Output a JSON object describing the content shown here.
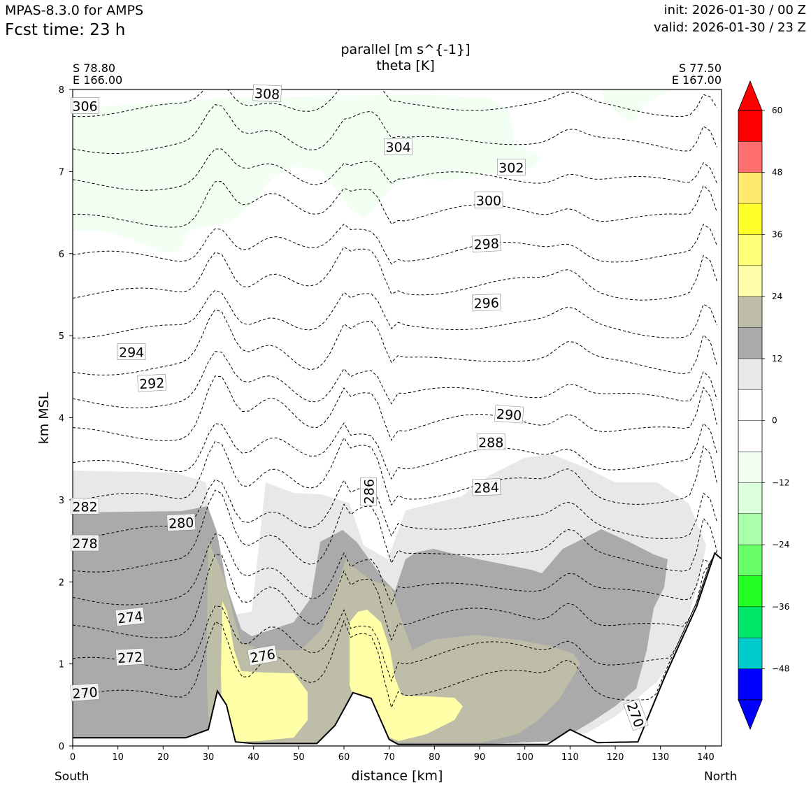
{
  "header": {
    "model": "MPAS-8.3.0 for AMPS",
    "fcst_time": "Fcst time:   23 h",
    "init": "init: 2026-01-30 / 00 Z",
    "valid": "valid: 2026-01-30 / 23 Z",
    "field_line1": "parallel [m s^{-1}]",
    "field_line2": "theta [K]"
  },
  "section": {
    "start_lat": "S 78.80",
    "start_lon": "E 166.00",
    "end_lat": "S 77.50",
    "end_lon": "E 167.00",
    "south_label": "South",
    "north_label": "North"
  },
  "colors": {
    "terrain_line": "#000000",
    "gray_light": "#e8e8e8",
    "gray_mid": "#aaaaaa",
    "olive": "#bebea8",
    "yellow_pale": "#ffffa8",
    "green_pale": "#f2fff2"
  },
  "chart_data": {
    "type": "contour",
    "title": "parallel [m s^{-1}] / theta [K]",
    "xlabel": "distance [km]",
    "ylabel": "km MSL",
    "xlim": [
      0,
      143.5
    ],
    "ylim": [
      0,
      8
    ],
    "x_ticks": [
      "0",
      "10",
      "20",
      "30",
      "40",
      "50",
      "60",
      "70",
      "80",
      "90",
      "100",
      "110",
      "120",
      "130",
      "140"
    ],
    "y_ticks": [
      "0",
      "1",
      "2",
      "3",
      "4",
      "5",
      "6",
      "7",
      "8"
    ],
    "theta_contour_labels": [
      {
        "text": "308",
        "x": 43,
        "y": 7.95,
        "rot": 3
      },
      {
        "text": "306",
        "x": 2.7,
        "y": 7.8,
        "rot": 0
      },
      {
        "text": "304",
        "x": 72,
        "y": 7.3,
        "rot": 0
      },
      {
        "text": "302",
        "x": 97,
        "y": 7.05,
        "rot": 0
      },
      {
        "text": "300",
        "x": 92,
        "y": 6.65,
        "rot": 0
      },
      {
        "text": "298",
        "x": 91.5,
        "y": 6.12,
        "rot": -3
      },
      {
        "text": "296",
        "x": 91.5,
        "y": 5.4,
        "rot": -2
      },
      {
        "text": "294",
        "x": 13,
        "y": 4.8,
        "rot": 0
      },
      {
        "text": "292",
        "x": 17.5,
        "y": 4.42,
        "rot": -3
      },
      {
        "text": "290",
        "x": 96.5,
        "y": 4.04,
        "rot": 4
      },
      {
        "text": "288",
        "x": 92.5,
        "y": 3.7,
        "rot": 0
      },
      {
        "text": "286",
        "x": 65.5,
        "y": 3.1,
        "rot": -90
      },
      {
        "text": "284",
        "x": 91.5,
        "y": 3.15,
        "rot": -2
      },
      {
        "text": "282",
        "x": 2.7,
        "y": 2.92,
        "rot": 0
      },
      {
        "text": "280",
        "x": 24,
        "y": 2.72,
        "rot": -3
      },
      {
        "text": "278",
        "x": 2.7,
        "y": 2.47,
        "rot": 0
      },
      {
        "text": "276",
        "x": 42,
        "y": 1.1,
        "rot": -10
      },
      {
        "text": "274",
        "x": 12.7,
        "y": 1.57,
        "rot": -6
      },
      {
        "text": "272",
        "x": 12.7,
        "y": 1.08,
        "rot": -3
      },
      {
        "text": "270",
        "x": 2.7,
        "y": 0.65,
        "rot": -4
      },
      {
        "text": "270",
        "x": 124.5,
        "y": 0.38,
        "rot": 70
      }
    ],
    "theta_contour_levels": [
      270,
      272,
      274,
      276,
      278,
      280,
      282,
      284,
      286,
      288,
      290,
      292,
      294,
      296,
      298,
      300,
      302,
      304,
      306,
      308
    ],
    "terrain_height_km": [
      {
        "x": 0,
        "y": 0.1
      },
      {
        "x": 25,
        "y": 0.1
      },
      {
        "x": 30,
        "y": 0.2
      },
      {
        "x": 32,
        "y": 0.67
      },
      {
        "x": 34,
        "y": 0.5
      },
      {
        "x": 36,
        "y": 0.05
      },
      {
        "x": 40,
        "y": 0.03
      },
      {
        "x": 54,
        "y": 0.03
      },
      {
        "x": 58,
        "y": 0.25
      },
      {
        "x": 62,
        "y": 0.65
      },
      {
        "x": 66,
        "y": 0.58
      },
      {
        "x": 70,
        "y": 0.08
      },
      {
        "x": 72,
        "y": 0.02
      },
      {
        "x": 105,
        "y": 0.02
      },
      {
        "x": 110,
        "y": 0.2
      },
      {
        "x": 116,
        "y": 0.04
      },
      {
        "x": 125,
        "y": 0.05
      },
      {
        "x": 131,
        "y": 0.85
      },
      {
        "x": 138,
        "y": 1.7
      },
      {
        "x": 142,
        "y": 2.35
      },
      {
        "x": 143.5,
        "y": 2.28
      }
    ],
    "colorbar": {
      "ticks": [
        "60",
        "48",
        "36",
        "24",
        "12",
        "0",
        "−12",
        "−24",
        "−36",
        "−48"
      ],
      "bins": [
        "#ff0000",
        "#ff6f6f",
        "#ffea6e",
        "#ffff2a",
        "#ffff77",
        "#ffffaa",
        "#bebea8",
        "#aaaaaa",
        "#e8e8e8",
        "#ffffff",
        "#ffffff",
        "#f2fff2",
        "#dcffdc",
        "#aaffaa",
        "#68ff68",
        "#22ff22",
        "#00e86a",
        "#00cccc",
        "#0000ff"
      ],
      "extend_max_color": "#ff0000",
      "extend_min_color": "#0000ff"
    }
  }
}
